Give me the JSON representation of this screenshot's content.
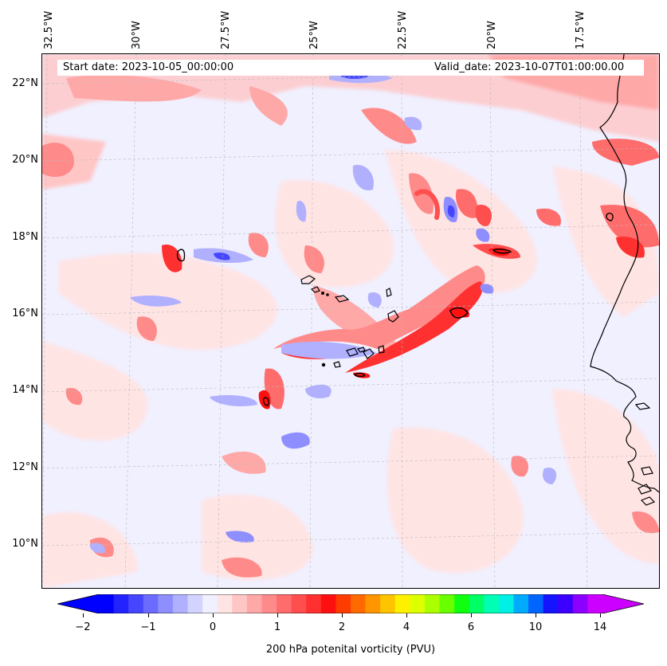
{
  "map": {
    "header_left": "Start date: 2023-10-05_00:00:00",
    "header_right": "Valid_date: 2023-10-07T01:00:00.00",
    "lon_labels": [
      "32.5°W",
      "30°W",
      "27.5°W",
      "25°W",
      "22.5°W",
      "20°W",
      "17.5°W"
    ],
    "lat_labels": [
      "22°N",
      "20°N",
      "18°N",
      "16°N",
      "14°N",
      "12°N",
      "10°N"
    ],
    "features": [
      "Cape Verde islands",
      "West African coastline (Mauritania, Senegal, Guinea-Bissau)"
    ],
    "background_level": "near-zero PVU (pale lavender)"
  },
  "colorbar": {
    "label": "200 hPa potenital vorticity (PVU)",
    "tick_labels": [
      "−2",
      "−1",
      "0",
      "1",
      "2",
      "4",
      "6",
      "10",
      "14"
    ],
    "extend": "both",
    "colors": [
      "#0000ff",
      "#2323ff",
      "#4646ff",
      "#6b6bff",
      "#8e8eff",
      "#b0b0ff",
      "#d3d3ff",
      "#f0f0ff",
      "#ffe4e4",
      "#ffc6c6",
      "#ffa8a8",
      "#ff8a8a",
      "#ff6c6c",
      "#ff4e4e",
      "#ff3030",
      "#ff1010",
      "#ff3c00",
      "#ff6a00",
      "#ff9600",
      "#ffc400",
      "#fff000",
      "#ddff00",
      "#aaff00",
      "#6aff00",
      "#10ff10",
      "#00ff64",
      "#00ffb4",
      "#00f0e6",
      "#00aaff",
      "#0064ff",
      "#1414ff",
      "#3c00ff",
      "#8c00ff",
      "#cc00ff"
    ],
    "under_color": "#0000ff",
    "over_color": "#cc00ff"
  }
}
